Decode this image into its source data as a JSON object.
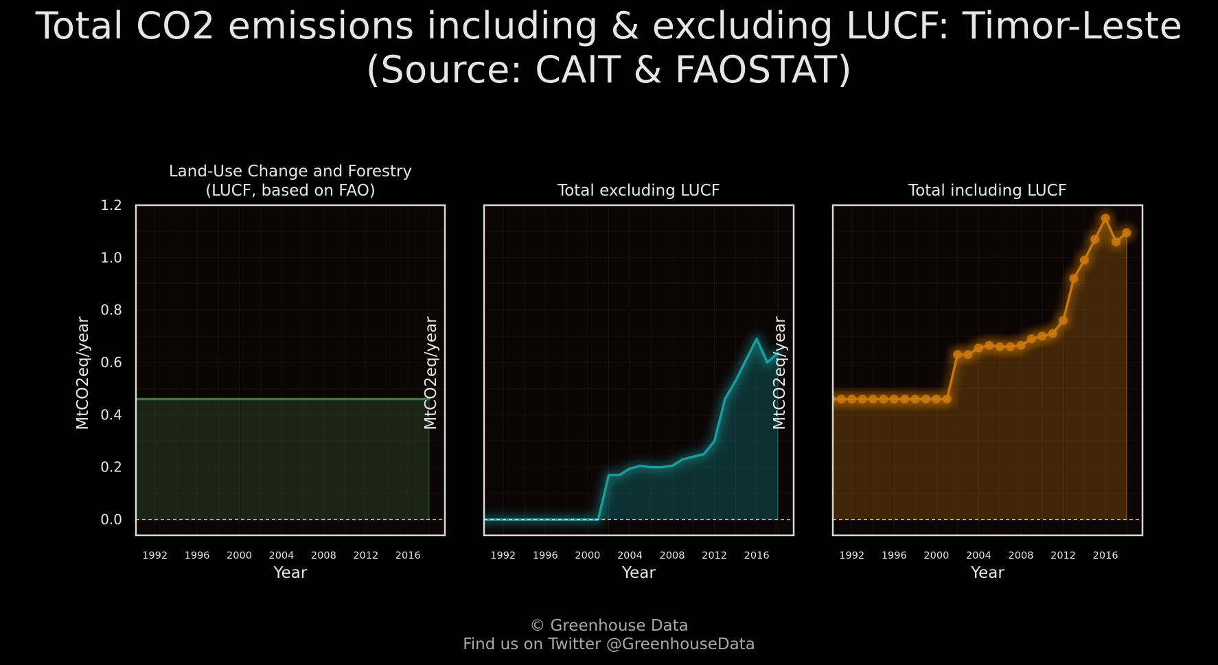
{
  "page": {
    "title_line1": "Total CO2 emissions including & excluding LUCF: Timor-Leste",
    "title_line2": "(Source: CAIT & FAOSTAT)",
    "credit_line1": "© Greenhouse Data",
    "credit_line2": "Find us on Twitter @GreenhouseData"
  },
  "colors": {
    "background": "#000000",
    "plot_background": "#0c0505",
    "frame": "#d8d8d8",
    "text": "#e6e6e6",
    "credits": "#a8a8a8",
    "lucf": "#3f7a45",
    "excl": "#11a5a5",
    "incl": "#cc7a0a"
  },
  "chart_data": [
    {
      "type": "area",
      "title_line1": "Land-Use Change and Forestry",
      "title_line2": "(LUCF, based on FAO)",
      "xlabel": "Year",
      "ylabel": "MtCO2eq/year",
      "color": "#3f7a45",
      "markers": false,
      "show_yticks": true,
      "xlim": [
        1990.2,
        2019.5
      ],
      "ylim": [
        -0.06,
        1.2
      ],
      "yticks": [
        "0.0",
        "0.2",
        "0.4",
        "0.6",
        "0.8",
        "1.0",
        "1.2"
      ],
      "xticks": [
        "1992",
        "1996",
        "2000",
        "2004",
        "2008",
        "2012",
        "2016"
      ],
      "grid": true,
      "zero_line": "dashed",
      "x": [
        1990,
        1991,
        1992,
        1993,
        1994,
        1995,
        1996,
        1997,
        1998,
        1999,
        2000,
        2001,
        2002,
        2003,
        2004,
        2005,
        2006,
        2007,
        2008,
        2009,
        2010,
        2011,
        2012,
        2013,
        2014,
        2015,
        2016,
        2017,
        2018
      ],
      "values": [
        0.46,
        0.46,
        0.46,
        0.46,
        0.46,
        0.46,
        0.46,
        0.46,
        0.46,
        0.46,
        0.46,
        0.46,
        0.46,
        0.46,
        0.46,
        0.46,
        0.46,
        0.46,
        0.46,
        0.46,
        0.46,
        0.46,
        0.46,
        0.46,
        0.46,
        0.46,
        0.46,
        0.46,
        0.46
      ]
    },
    {
      "type": "area",
      "title_line1": "",
      "title_line2": "Total excluding LUCF",
      "xlabel": "Year",
      "ylabel": "MtCO2eq/year",
      "color": "#11a5a5",
      "markers": false,
      "show_yticks": false,
      "xlim": [
        1990.2,
        2019.5
      ],
      "ylim": [
        -0.06,
        1.2
      ],
      "xticks": [
        "1992",
        "1996",
        "2000",
        "2004",
        "2008",
        "2012",
        "2016"
      ],
      "grid": true,
      "zero_line": "dashed",
      "x": [
        1990,
        1991,
        1992,
        1993,
        1994,
        1995,
        1996,
        1997,
        1998,
        1999,
        2000,
        2001,
        2002,
        2003,
        2004,
        2005,
        2006,
        2007,
        2008,
        2009,
        2010,
        2011,
        2012,
        2013,
        2014,
        2015,
        2016,
        2017,
        2018
      ],
      "values": [
        0,
        0,
        0,
        0,
        0,
        0,
        0,
        0,
        0,
        0,
        0,
        0,
        0.17,
        0.17,
        0.195,
        0.205,
        0.2,
        0.2,
        0.205,
        0.23,
        0.24,
        0.25,
        0.3,
        0.46,
        0.53,
        0.61,
        0.69,
        0.6,
        0.635
      ]
    },
    {
      "type": "area",
      "title_line1": "",
      "title_line2": "Total including LUCF",
      "xlabel": "Year",
      "ylabel": "MtCO2eq/year",
      "color": "#cc7a0a",
      "markers": true,
      "show_yticks": false,
      "xlim": [
        1990.2,
        2019.5
      ],
      "ylim": [
        -0.06,
        1.2
      ],
      "xticks": [
        "1992",
        "1996",
        "2000",
        "2004",
        "2008",
        "2012",
        "2016"
      ],
      "grid": true,
      "zero_line": "dashed",
      "x": [
        1990,
        1991,
        1992,
        1993,
        1994,
        1995,
        1996,
        1997,
        1998,
        1999,
        2000,
        2001,
        2002,
        2003,
        2004,
        2005,
        2006,
        2007,
        2008,
        2009,
        2010,
        2011,
        2012,
        2013,
        2014,
        2015,
        2016,
        2017,
        2018
      ],
      "values": [
        0.46,
        0.46,
        0.46,
        0.46,
        0.46,
        0.46,
        0.46,
        0.46,
        0.46,
        0.46,
        0.46,
        0.46,
        0.63,
        0.63,
        0.655,
        0.665,
        0.66,
        0.66,
        0.665,
        0.69,
        0.7,
        0.71,
        0.76,
        0.92,
        0.99,
        1.07,
        1.15,
        1.06,
        1.095
      ]
    }
  ]
}
